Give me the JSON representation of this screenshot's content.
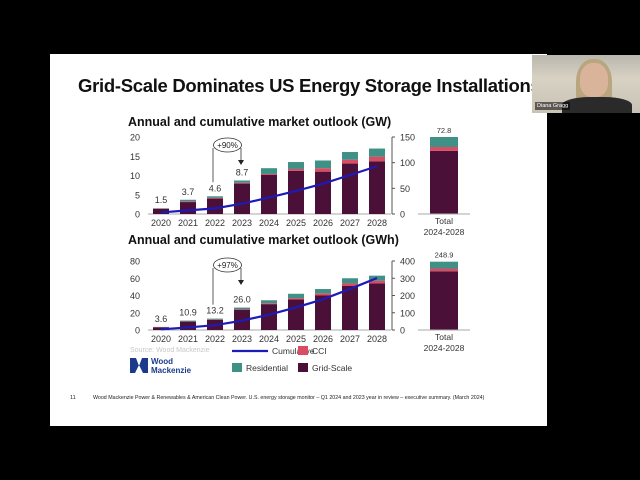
{
  "slide": {
    "title": "Grid-Scale Dominates US Energy Storage Installations",
    "page_number": "11",
    "footer": "Wood Mackenzie Power & Renewables & American Clean Power. U.S. energy storage monitor – Q1 2024 and 2023 year in review – executive summary. (March 2024)",
    "source": "Source: Wood Mackenzie",
    "logo_text": [
      "Wood",
      "Mackenzie"
    ]
  },
  "participant": {
    "name": "Diana Gragg"
  },
  "colors": {
    "grid_scale": "#4a1038",
    "cci": "#d94c63",
    "residential": "#3f9186",
    "cumulative": "#1c1ab8",
    "brand": "#1b3a8c"
  },
  "legend": [
    {
      "label": "Cumulative",
      "type": "line",
      "color": "#1c1ab8"
    },
    {
      "label": "CCI",
      "type": "square",
      "color": "#d94c63"
    },
    {
      "label": "Residential",
      "type": "square",
      "color": "#3f9186"
    },
    {
      "label": "Grid-Scale",
      "type": "square",
      "color": "#4a1038"
    }
  ],
  "chart_data": [
    {
      "type": "bar",
      "stacked": true,
      "title": "Annual and cumulative market outlook (GW)",
      "categories": [
        "2020",
        "2021",
        "2022",
        "2023",
        "2024",
        "2025",
        "2026",
        "2027",
        "2028"
      ],
      "ylim": [
        0,
        20
      ],
      "yticks": [
        0,
        5,
        10,
        15,
        20
      ],
      "y2lim": [
        0,
        150
      ],
      "y2ticks": [
        0,
        50,
        100,
        150
      ],
      "series": [
        {
          "name": "Grid-Scale",
          "values": [
            1.3,
            3.1,
            4.0,
            7.9,
            10.2,
            11.2,
            11.0,
            13.1,
            13.7
          ]
        },
        {
          "name": "CCI",
          "values": [
            0.1,
            0.2,
            0.2,
            0.2,
            0.2,
            0.5,
            0.9,
            1.0,
            1.2
          ]
        },
        {
          "name": "Residential",
          "values": [
            0.1,
            0.4,
            0.4,
            0.6,
            1.5,
            1.8,
            2.0,
            2.0,
            2.1
          ]
        }
      ],
      "cumulative": {
        "name": "Cumulative",
        "axis": "right",
        "values": [
          3,
          7,
          11,
          20,
          32,
          45,
          59,
          76,
          93
        ]
      },
      "data_labels": [
        "1.5",
        "3.7",
        "4.6",
        "8.7"
      ],
      "annotation": "+90%",
      "total": {
        "label": [
          "Total",
          "2024-2028"
        ],
        "value_label": "72.8",
        "fill_fraction": 1.0,
        "shares": {
          "Grid-Scale": 0.82,
          "CCI": 0.05,
          "Residential": 0.13
        }
      }
    },
    {
      "type": "bar",
      "stacked": true,
      "title": "Annual and cumulative market outlook (GWh)",
      "categories": [
        "2020",
        "2021",
        "2022",
        "2023",
        "2024",
        "2025",
        "2026",
        "2027",
        "2028"
      ],
      "ylim": [
        0,
        80
      ],
      "yticks": [
        0,
        20,
        40,
        60,
        80
      ],
      "y2lim": [
        0,
        400
      ],
      "y2ticks": [
        0,
        100,
        200,
        300,
        400
      ],
      "series": [
        {
          "name": "Grid-Scale",
          "values": [
            3.2,
            9.8,
            11.8,
            23.6,
            30,
            35.5,
            40,
            51,
            54
          ]
        },
        {
          "name": "CCI",
          "values": [
            0.2,
            0.3,
            0.4,
            0.6,
            1,
            1.5,
            2.5,
            3,
            3
          ]
        },
        {
          "name": "Residential",
          "values": [
            0.2,
            0.8,
            1.0,
            1.8,
            3.5,
            5,
            5,
            6,
            6
          ]
        }
      ],
      "cumulative": {
        "name": "Cumulative",
        "axis": "right",
        "values": [
          4,
          15,
          28,
          54,
          89,
          131,
          178,
          238,
          301
        ]
      },
      "data_labels": [
        "3.6",
        "10.9",
        "13.2",
        "26.0"
      ],
      "annotation": "+97%",
      "total": {
        "label": [
          "Total",
          "2024-2028"
        ],
        "value_label": "248.9",
        "fill_fraction": 0.99,
        "shares": {
          "Grid-Scale": 0.86,
          "CCI": 0.04,
          "Residential": 0.1
        }
      }
    }
  ]
}
